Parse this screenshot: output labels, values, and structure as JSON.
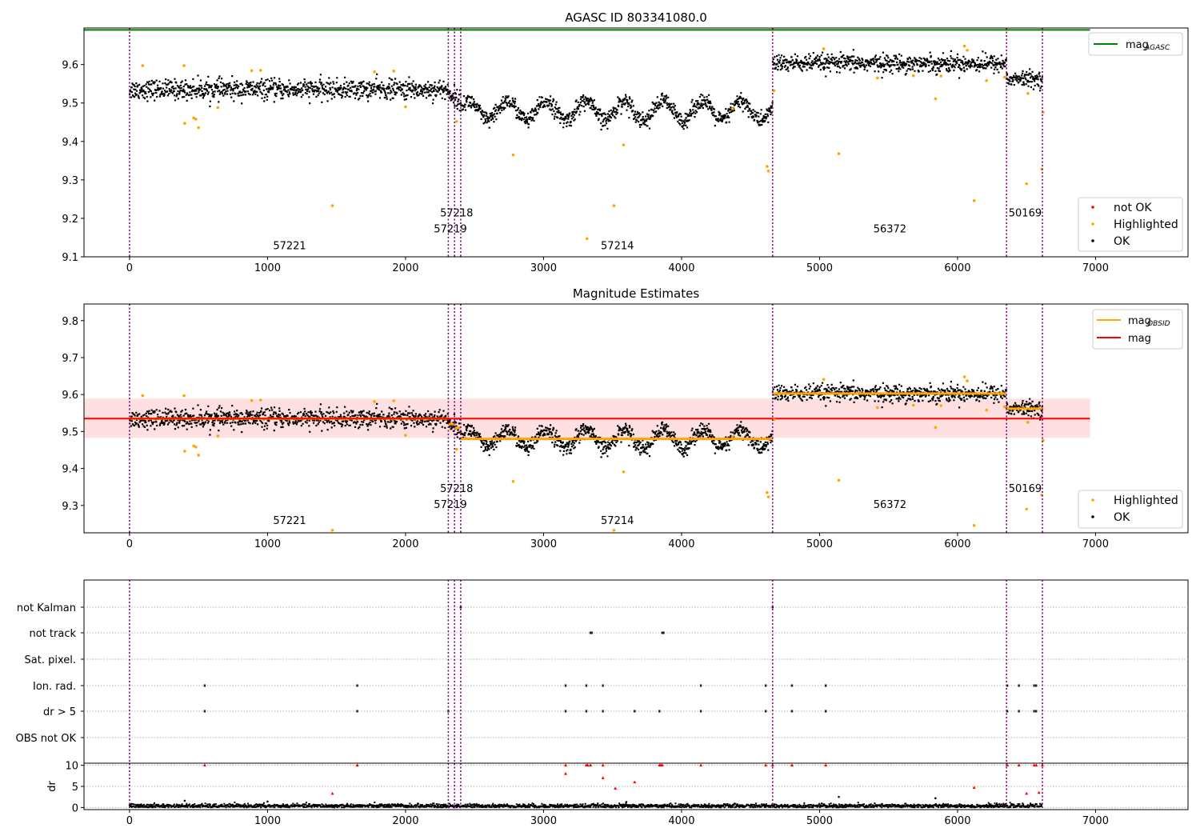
{
  "chart_data": [
    {
      "type": "scatter",
      "title": "AGASC ID 803341080.0",
      "xlim": [
        -330,
        7670
      ],
      "ylim": [
        9.1,
        9.695
      ],
      "xticks": [
        0,
        1000,
        2000,
        3000,
        4000,
        5000,
        6000,
        7000
      ],
      "yticks": [
        9.1,
        9.2,
        9.3,
        9.4,
        9.5,
        9.6
      ],
      "mag_agasc": 9.69,
      "mag_agasc_xrange": [
        -330,
        6960
      ],
      "boundaries": [
        0,
        2310,
        2355,
        2400,
        4660,
        6355,
        6615
      ],
      "segments": [
        {
          "obsid": "57221",
          "x0": 0,
          "x1": 2310,
          "mean": 9.535,
          "wave_amp": 0,
          "noise": 0.028
        },
        {
          "obsid": "57219",
          "x0": 2310,
          "x1": 2355,
          "mean": 9.52,
          "wave_amp": 0,
          "noise": 0.025
        },
        {
          "obsid": "57218",
          "x0": 2355,
          "x1": 2400,
          "mean": 9.51,
          "wave_amp": 0,
          "noise": 0.025
        },
        {
          "obsid": "57214",
          "x0": 2400,
          "x1": 4660,
          "mean": 9.48,
          "wave_amp": 0.025,
          "wave_period": 282,
          "noise": 0.024
        },
        {
          "obsid": "56372",
          "x0": 4660,
          "x1": 6355,
          "mean": 9.603,
          "wave_amp": 0,
          "noise": 0.025
        },
        {
          "obsid": "50169",
          "x0": 6355,
          "x1": 6615,
          "mean": 9.562,
          "wave_amp": 0,
          "noise": 0.022
        }
      ],
      "obsid_labels": [
        {
          "text": "57221",
          "x": 1160,
          "y": 9.12
        },
        {
          "text": "57219",
          "x": 2325,
          "y": 9.163
        },
        {
          "text": "57218",
          "x": 2370,
          "y": 9.205
        },
        {
          "text": "57214",
          "x": 3535,
          "y": 9.12
        },
        {
          "text": "56372",
          "x": 5510,
          "y": 9.163
        },
        {
          "text": "50169",
          "x": 6490,
          "y": 9.205
        }
      ],
      "highlighted": [
        [
          95,
          9.597
        ],
        [
          395,
          9.597
        ],
        [
          400,
          9.447
        ],
        [
          465,
          9.461
        ],
        [
          480,
          9.458
        ],
        [
          500,
          9.436
        ],
        [
          640,
          9.488
        ],
        [
          885,
          9.584
        ],
        [
          950,
          9.585
        ],
        [
          1470,
          9.233
        ],
        [
          1775,
          9.581
        ],
        [
          1915,
          9.583
        ],
        [
          2000,
          9.49
        ],
        [
          2370,
          9.452
        ],
        [
          2780,
          9.365
        ],
        [
          3315,
          9.147
        ],
        [
          3510,
          9.233
        ],
        [
          3580,
          9.391
        ],
        [
          4370,
          9.485
        ],
        [
          4620,
          9.335
        ],
        [
          4630,
          9.323
        ],
        [
          4670,
          9.532
        ],
        [
          5030,
          9.641
        ],
        [
          5140,
          9.368
        ],
        [
          5420,
          9.565
        ],
        [
          5680,
          9.571
        ],
        [
          5840,
          9.511
        ],
        [
          5880,
          9.57
        ],
        [
          6050,
          9.648
        ],
        [
          6070,
          9.637
        ],
        [
          6120,
          9.246
        ],
        [
          6210,
          9.558
        ],
        [
          6340,
          9.567
        ],
        [
          6500,
          9.29
        ],
        [
          6510,
          9.525
        ],
        [
          6610,
          9.328
        ],
        [
          6620,
          9.476
        ]
      ],
      "legend": [
        {
          "label": "not OK",
          "color": "#ff0000"
        },
        {
          "label": "Highlighted",
          "color": "#ffa500"
        },
        {
          "label": "OK",
          "color": "#000000"
        }
      ],
      "legend_line": {
        "label": "mag",
        "sub": "AGASC",
        "color": "#008000"
      }
    },
    {
      "type": "scatter",
      "title": "Magnitude Estimates",
      "xlim": [
        -330,
        7670
      ],
      "ylim": [
        9.226,
        9.845
      ],
      "xticks": [
        0,
        1000,
        2000,
        3000,
        4000,
        5000,
        6000,
        7000
      ],
      "yticks": [
        9.3,
        9.4,
        9.5,
        9.6,
        9.7,
        9.8
      ],
      "mag": 9.535,
      "mag_band": [
        9.483,
        9.589
      ],
      "mag_xrange": [
        -330,
        6960
      ],
      "obsid_labels": [
        {
          "text": "57221",
          "x": 1160,
          "y": 9.25
        },
        {
          "text": "57219",
          "x": 2325,
          "y": 9.293
        },
        {
          "text": "57218",
          "x": 2370,
          "y": 9.336
        },
        {
          "text": "57214",
          "x": 3535,
          "y": 9.25
        },
        {
          "text": "56372",
          "x": 5510,
          "y": 9.293
        },
        {
          "text": "50169",
          "x": 6490,
          "y": 9.336
        }
      ],
      "legend": [
        {
          "label": "Highlighted",
          "color": "#ffa500"
        },
        {
          "label": "OK",
          "color": "#000000"
        }
      ],
      "legend_lines": [
        {
          "label": "mag",
          "sub": "OBSID",
          "color": "#ffa500"
        },
        {
          "label": "mag",
          "sub": "",
          "color": "#ff0000"
        }
      ]
    },
    {
      "type": "scatter",
      "flags": [
        "not Kalman",
        "not track",
        "Sat. pixel.",
        "Ion. rad.",
        "dr > 5",
        "OBS not OK"
      ],
      "flag_points": {
        "not Kalman": [
          2400,
          4660
        ],
        "not track": [
          3340,
          3350,
          3860,
          3870
        ],
        "Sat. pixel.": [],
        "Ion. rad.": [
          545,
          1650,
          3160,
          3310,
          3430,
          4140,
          4610,
          4800,
          5045,
          6360,
          6445,
          6555,
          6570
        ],
        "dr > 5": [
          545,
          1650,
          2310,
          3160,
          3310,
          3430,
          3660,
          3840,
          4140,
          4610,
          4800,
          5045,
          6360,
          6445,
          6555,
          6570
        ],
        "OBS not OK": []
      },
      "dr_ylim": [
        -0.5,
        10.5
      ],
      "dr_yticks": [
        0,
        5,
        10
      ],
      "dr_ylabel": "dr",
      "dr_outliers": [
        [
          545,
          10
        ],
        [
          1650,
          10
        ],
        [
          3160,
          10
        ],
        [
          3310,
          10
        ],
        [
          3320,
          10
        ],
        [
          3340,
          10
        ],
        [
          3430,
          10
        ],
        [
          3840,
          10
        ],
        [
          3850,
          10
        ],
        [
          3860,
          10
        ],
        [
          4140,
          10
        ],
        [
          4610,
          10
        ],
        [
          4660,
          10
        ],
        [
          4800,
          10
        ],
        [
          5045,
          10
        ],
        [
          6360,
          10
        ],
        [
          6445,
          10
        ],
        [
          6555,
          10
        ],
        [
          6570,
          10
        ],
        [
          6615,
          10
        ],
        [
          3160,
          8
        ],
        [
          3430,
          7
        ],
        [
          3520,
          4.5
        ],
        [
          3660,
          6
        ],
        [
          1470,
          3.3
        ],
        [
          6120,
          4.7
        ],
        [
          6500,
          3.3
        ],
        [
          6590,
          3.5
        ]
      ],
      "dr_black_outliers": [
        [
          400,
          1.6
        ],
        [
          1000,
          1.4
        ],
        [
          5140,
          2.5
        ],
        [
          5840,
          2.2
        ],
        [
          3600,
          1.3
        ]
      ],
      "xticks": [
        0,
        1000,
        2000,
        3000,
        4000,
        5000,
        6000,
        7000
      ]
    }
  ]
}
